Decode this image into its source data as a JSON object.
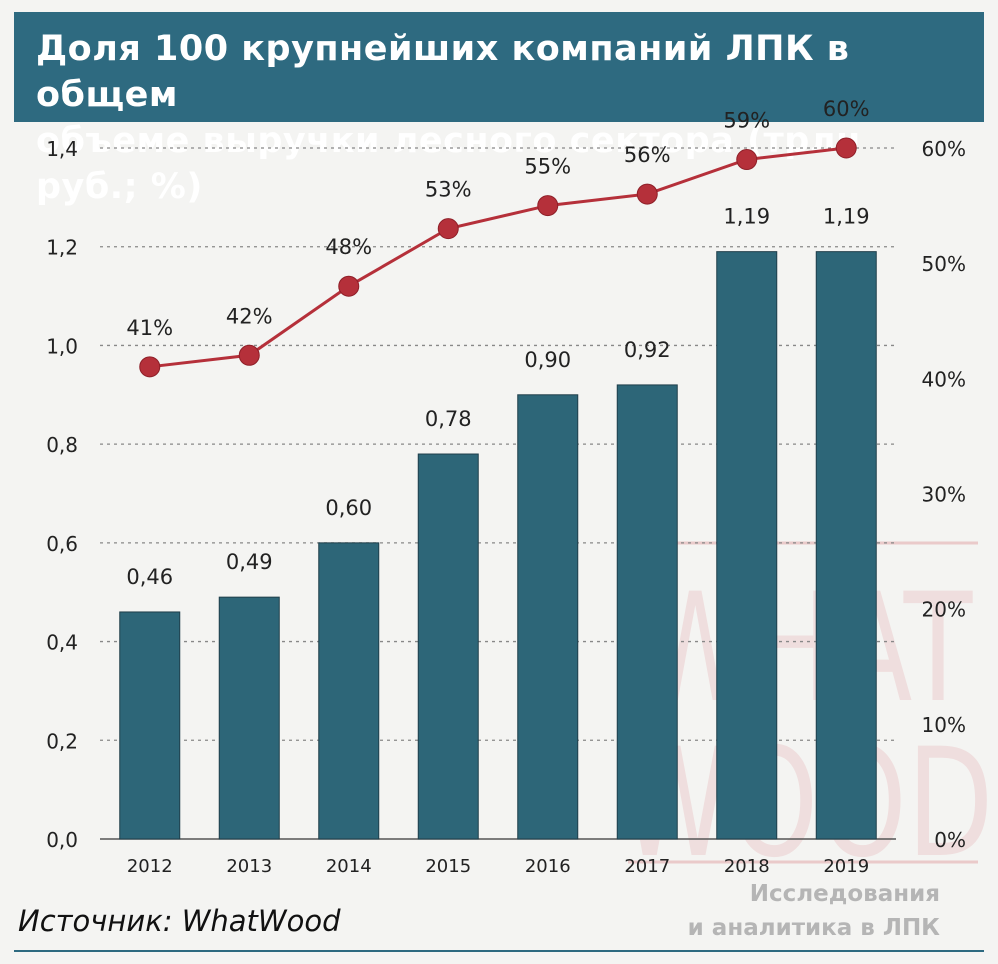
{
  "title": "Доля 100 крупнейших компаний ЛПК в общем\nобъеме выручки лесного сектора (трлн руб.; %)",
  "source": "Источник: WhatWood",
  "watermark": {
    "logo_line1": "WHAT",
    "logo_line2": "WOOD",
    "tagline_line1": "Исследования",
    "tagline_line2": "и аналитика в ЛПК"
  },
  "colors": {
    "bar": "#2d6678",
    "line": "#b5303a",
    "title_bg": "#2e6a80",
    "gridline": "#888888"
  },
  "chart_data": {
    "type": "bar",
    "categories": [
      "2012",
      "2013",
      "2014",
      "2015",
      "2016",
      "2017",
      "2018",
      "2019"
    ],
    "series": [
      {
        "type": "bar",
        "axis": "left",
        "values": [
          0.46,
          0.49,
          0.6,
          0.78,
          0.9,
          0.92,
          1.19,
          1.19
        ],
        "labels": [
          "0,46",
          "0,49",
          "0,60",
          "0,78",
          "0,90",
          "0,92",
          "1,19",
          "1,19"
        ]
      },
      {
        "type": "line",
        "axis": "right",
        "values": [
          41,
          42,
          48,
          53,
          55,
          56,
          59,
          60
        ],
        "labels": [
          "41%",
          "42%",
          "48%",
          "53%",
          "55%",
          "56%",
          "59%",
          "60%"
        ]
      }
    ],
    "y_left": {
      "ylim": [
        0,
        1.4
      ],
      "ticks": [
        "0,0",
        "0,2",
        "0,4",
        "0,6",
        "0,8",
        "1,0",
        "1,2",
        "1,4"
      ]
    },
    "y_right": {
      "ylim": [
        0,
        60
      ],
      "ticks": [
        "0%",
        "10%",
        "20%",
        "30%",
        "40%",
        "50%",
        "60%"
      ]
    },
    "grid": true
  }
}
